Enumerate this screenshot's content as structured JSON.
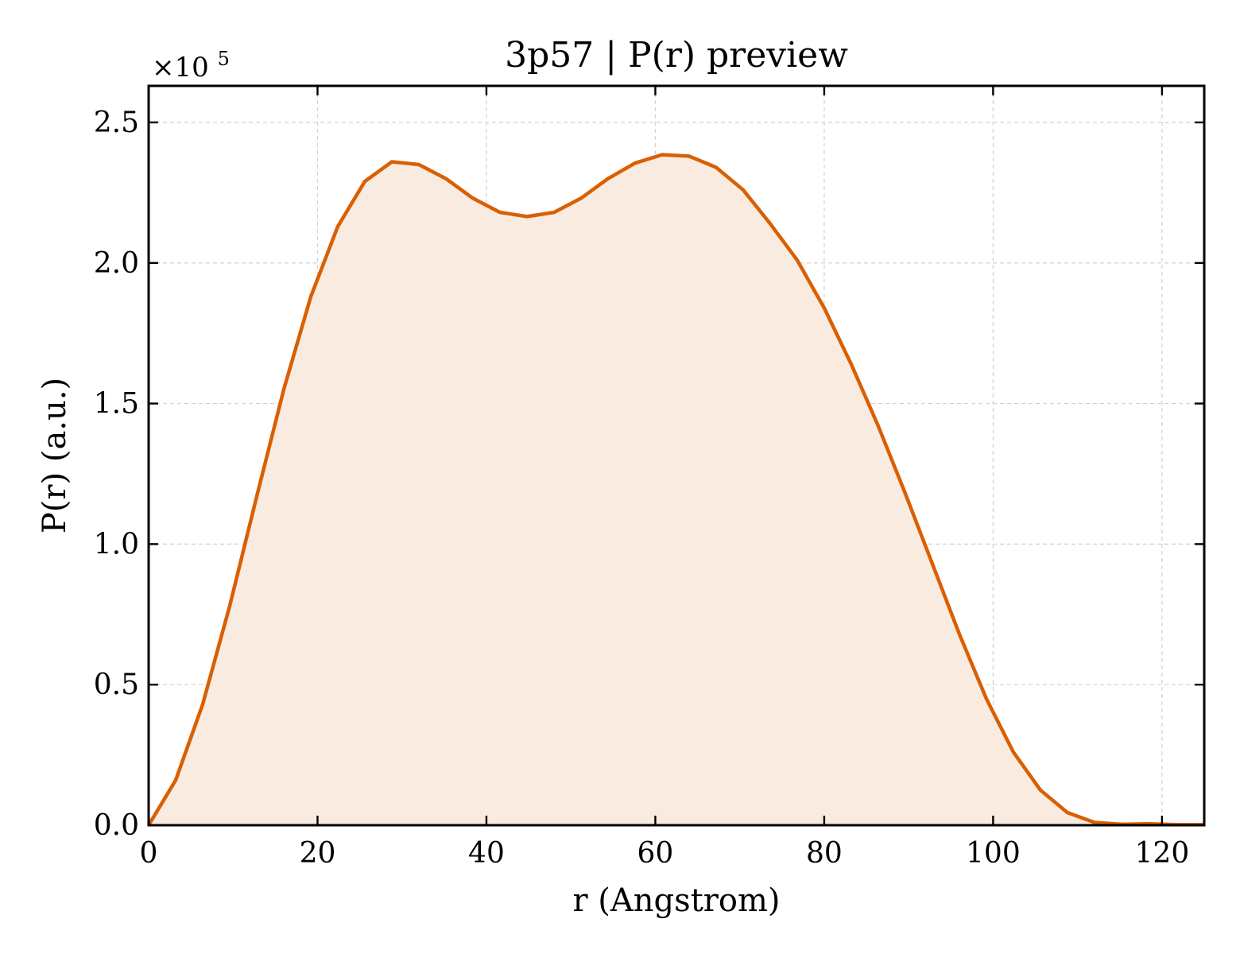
{
  "chart_data": {
    "type": "area",
    "title": "3p57 | P(r) preview",
    "xlabel": "r (Angstrom)",
    "ylabel": "P(r) (a.u.)",
    "y_scale_label": "×10",
    "y_scale_exponent": "5",
    "y_multiplier": 100000,
    "xlim": [
      0,
      125
    ],
    "ylim": [
      0,
      2.63
    ],
    "x_ticks": [
      0,
      20,
      40,
      60,
      80,
      100,
      120
    ],
    "y_ticks": [
      0.0,
      0.5,
      1.0,
      1.5,
      2.0,
      2.5
    ],
    "x_tick_labels": [
      "0",
      "20",
      "40",
      "60",
      "80",
      "100",
      "120"
    ],
    "y_tick_labels": [
      "0.0",
      "0.5",
      "1.0",
      "1.5",
      "2.0",
      "2.5"
    ],
    "grid": true,
    "line_color": "#d95f02",
    "fill_color": "#f9ebe0",
    "series": [
      {
        "x": [
          0,
          3.2,
          6.4,
          9.6,
          12.8,
          16.0,
          19.2,
          22.4,
          25.6,
          28.8,
          32.0,
          35.2,
          38.4,
          41.6,
          44.8,
          48.0,
          51.2,
          54.4,
          57.6,
          60.8,
          64.0,
          67.2,
          70.4,
          73.6,
          76.8,
          80.0,
          83.2,
          86.4,
          89.6,
          92.8,
          96.0,
          99.2,
          102.4,
          105.6,
          108.8,
          112.0,
          115.2,
          118.4,
          121.6,
          125.0
        ],
        "y": [
          0.0,
          0.16,
          0.43,
          0.78,
          1.17,
          1.55,
          1.88,
          2.13,
          2.29,
          2.36,
          2.35,
          2.3,
          2.23,
          2.18,
          2.165,
          2.18,
          2.23,
          2.3,
          2.355,
          2.385,
          2.38,
          2.34,
          2.26,
          2.14,
          2.01,
          1.84,
          1.64,
          1.42,
          1.18,
          0.93,
          0.68,
          0.45,
          0.26,
          0.125,
          0.045,
          0.01,
          0.003,
          0.005,
          0.002,
          0.002
        ]
      }
    ]
  }
}
